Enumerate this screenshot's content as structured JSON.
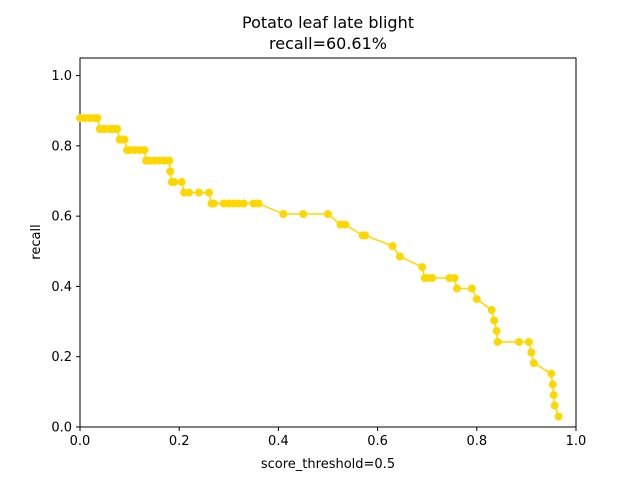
{
  "chart_data": {
    "type": "line",
    "title": "Potato leaf late blight",
    "subtitle": "recall=60.61%",
    "xlabel": "score_threshold=0.5",
    "ylabel": "recall",
    "xlim": [
      0.0,
      1.0
    ],
    "ylim": [
      0.0,
      1.05
    ],
    "x_ticks": [
      "0.0",
      "0.2",
      "0.4",
      "0.6",
      "0.8",
      "1.0"
    ],
    "y_ticks": [
      "0.0",
      "0.2",
      "0.4",
      "0.6",
      "0.8",
      "1.0"
    ],
    "grid": false,
    "series": [
      {
        "name": "recall",
        "color": "#ffd700",
        "marker": "circle",
        "x": [
          0.0,
          0.01,
          0.02,
          0.03,
          0.035,
          0.04,
          0.045,
          0.05,
          0.06,
          0.065,
          0.07,
          0.075,
          0.08,
          0.085,
          0.09,
          0.095,
          0.1,
          0.11,
          0.12,
          0.13,
          0.133,
          0.14,
          0.15,
          0.16,
          0.17,
          0.18,
          0.182,
          0.185,
          0.19,
          0.205,
          0.21,
          0.22,
          0.24,
          0.26,
          0.265,
          0.27,
          0.29,
          0.3,
          0.31,
          0.32,
          0.33,
          0.35,
          0.36,
          0.41,
          0.45,
          0.5,
          0.525,
          0.535,
          0.57,
          0.575,
          0.63,
          0.645,
          0.69,
          0.695,
          0.7,
          0.71,
          0.745,
          0.755,
          0.76,
          0.79,
          0.8,
          0.83,
          0.835,
          0.84,
          0.842,
          0.885,
          0.905,
          0.91,
          0.915,
          0.95,
          0.953,
          0.955,
          0.957,
          0.965
        ],
        "y": [
          0.879,
          0.879,
          0.879,
          0.879,
          0.879,
          0.848,
          0.848,
          0.848,
          0.848,
          0.848,
          0.848,
          0.848,
          0.818,
          0.818,
          0.818,
          0.788,
          0.788,
          0.788,
          0.788,
          0.788,
          0.758,
          0.758,
          0.758,
          0.758,
          0.758,
          0.758,
          0.727,
          0.697,
          0.697,
          0.697,
          0.667,
          0.667,
          0.667,
          0.667,
          0.636,
          0.636,
          0.636,
          0.636,
          0.636,
          0.636,
          0.636,
          0.636,
          0.636,
          0.606,
          0.606,
          0.606,
          0.576,
          0.576,
          0.545,
          0.545,
          0.515,
          0.485,
          0.455,
          0.424,
          0.424,
          0.424,
          0.424,
          0.424,
          0.394,
          0.394,
          0.364,
          0.333,
          0.303,
          0.273,
          0.242,
          0.242,
          0.242,
          0.212,
          0.182,
          0.152,
          0.121,
          0.091,
          0.061,
          0.03
        ]
      }
    ]
  }
}
